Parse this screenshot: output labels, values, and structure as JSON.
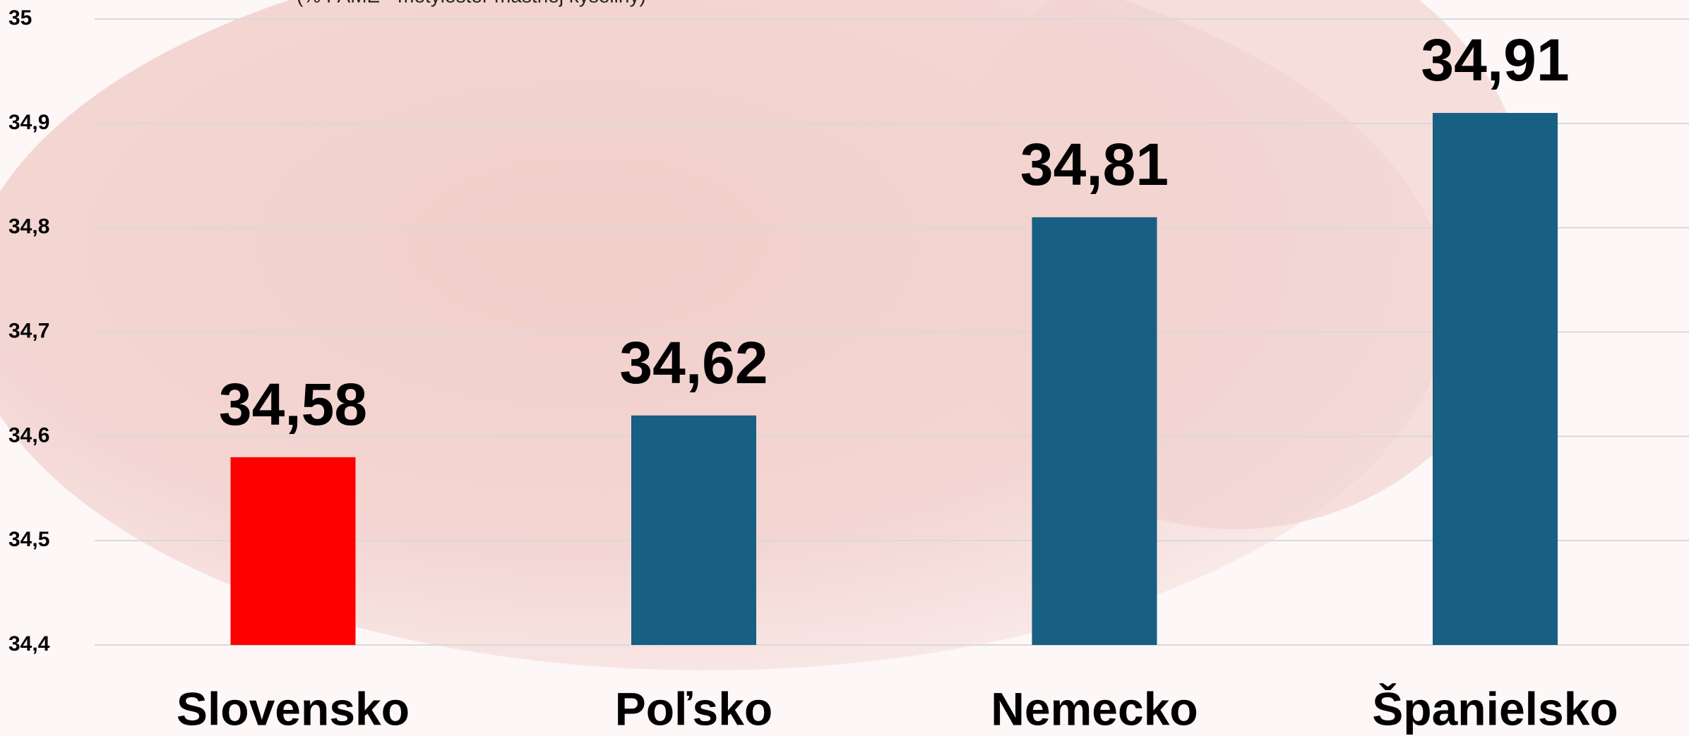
{
  "chart_data": {
    "type": "bar",
    "subtitle": "(% FAME - metylester mastnej kyseliny)",
    "categories": [
      "Slovensko",
      "Poľsko",
      "Nemecko",
      "Španielsko"
    ],
    "values": [
      34.58,
      34.62,
      34.81,
      34.91
    ],
    "value_labels": [
      "34,58",
      "34,62",
      "34,81",
      "34,91"
    ],
    "colors": [
      "#ff0000",
      "#175f83",
      "#175f83",
      "#175f83"
    ],
    "ylim": [
      34.4,
      35
    ],
    "yticks": [
      {
        "value": 34.4,
        "label": "34,4"
      },
      {
        "value": 34.5,
        "label": "34,5"
      },
      {
        "value": 34.6,
        "label": "34,6"
      },
      {
        "value": 34.7,
        "label": "34,7"
      },
      {
        "value": 34.8,
        "label": "34,8"
      },
      {
        "value": 34.9,
        "label": "34,9"
      },
      35
    ],
    "grid": true
  }
}
